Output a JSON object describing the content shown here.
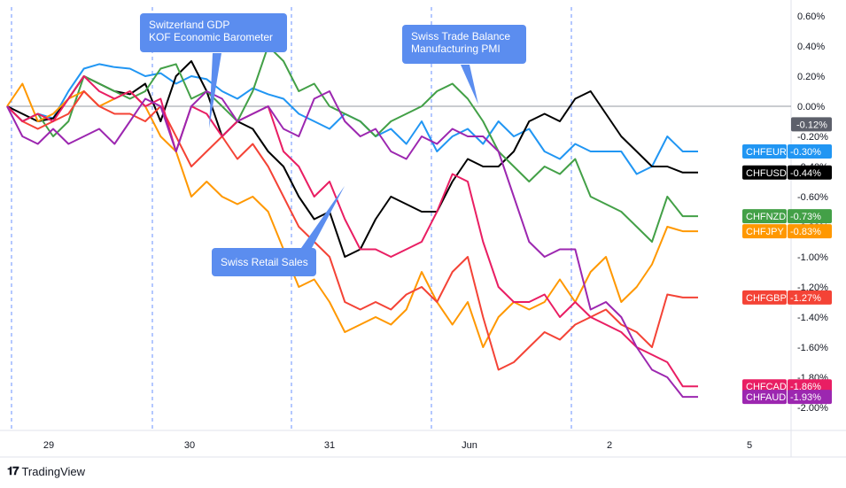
{
  "chart_data": {
    "type": "line",
    "x_labels": [
      "29",
      "30",
      "31",
      "Jun",
      "2",
      "5"
    ],
    "ylim": [
      -2.1,
      0.7
    ],
    "y_ticks": [
      "0.60%",
      "0.40%",
      "0.20%",
      "0.00%",
      "-0.20%",
      "-0.40%",
      "-0.60%",
      "-0.80%",
      "-1.00%",
      "-1.20%",
      "-1.40%",
      "-1.60%",
      "-1.80%",
      "-2.00%"
    ],
    "zero_tag": "-0.12%",
    "series": [
      {
        "name": "CHFEUR",
        "last_label": "-0.30%",
        "color": "#2196f3",
        "values": [
          0.0,
          -0.1,
          -0.05,
          -0.08,
          0.1,
          0.25,
          0.28,
          0.26,
          0.25,
          0.2,
          0.22,
          0.15,
          0.2,
          0.18,
          0.1,
          0.05,
          0.12,
          0.08,
          0.05,
          -0.05,
          -0.1,
          -0.15,
          -0.05,
          -0.1,
          -0.2,
          -0.15,
          -0.25,
          -0.1,
          -0.3,
          -0.2,
          -0.15,
          -0.25,
          -0.1,
          -0.2,
          -0.15,
          -0.3,
          -0.35,
          -0.25,
          -0.3,
          -0.3,
          -0.3,
          -0.45,
          -0.4,
          -0.2,
          -0.3,
          -0.3
        ]
      },
      {
        "name": "CHFUSD",
        "last_label": "-0.44%",
        "color": "#000000",
        "values": [
          0.0,
          -0.05,
          -0.1,
          -0.08,
          0.05,
          0.2,
          0.15,
          0.1,
          0.08,
          0.15,
          -0.1,
          0.2,
          0.3,
          0.1,
          -0.2,
          -0.1,
          -0.15,
          -0.3,
          -0.4,
          -0.6,
          -0.75,
          -0.7,
          -1.0,
          -0.95,
          -0.75,
          -0.6,
          -0.65,
          -0.7,
          -0.7,
          -0.5,
          -0.35,
          -0.4,
          -0.4,
          -0.3,
          -0.1,
          -0.05,
          -0.1,
          0.05,
          0.1,
          -0.05,
          -0.2,
          -0.3,
          -0.4,
          -0.4,
          -0.44,
          -0.44
        ]
      },
      {
        "name": "CHFNZD",
        "last_label": "-0.73%",
        "color": "#43a047",
        "values": [
          0.0,
          -0.1,
          -0.05,
          -0.2,
          -0.1,
          0.2,
          0.15,
          0.1,
          0.05,
          0.1,
          0.25,
          0.28,
          0.05,
          0.1,
          0.0,
          -0.1,
          0.1,
          0.4,
          0.3,
          0.1,
          0.15,
          0.0,
          -0.05,
          -0.1,
          -0.2,
          -0.1,
          -0.05,
          0.0,
          0.1,
          0.15,
          0.05,
          -0.1,
          -0.3,
          -0.4,
          -0.5,
          -0.4,
          -0.45,
          -0.35,
          -0.6,
          -0.65,
          -0.7,
          -0.8,
          -0.9,
          -0.6,
          -0.73,
          -0.73
        ]
      },
      {
        "name": "CHFJPY",
        "last_label": "-0.83%",
        "color": "#ff9800",
        "values": [
          0.0,
          0.15,
          -0.1,
          -0.05,
          0.05,
          0.1,
          0.0,
          0.05,
          0.1,
          0.0,
          -0.2,
          -0.3,
          -0.6,
          -0.5,
          -0.6,
          -0.65,
          -0.6,
          -0.7,
          -0.95,
          -1.2,
          -1.15,
          -1.3,
          -1.5,
          -1.45,
          -1.4,
          -1.45,
          -1.35,
          -1.1,
          -1.3,
          -1.45,
          -1.3,
          -1.6,
          -1.4,
          -1.3,
          -1.35,
          -1.3,
          -1.15,
          -1.3,
          -1.1,
          -1.0,
          -1.3,
          -1.2,
          -1.05,
          -0.8,
          -0.83,
          -0.83
        ]
      },
      {
        "name": "CHFGBP",
        "last_label": "-1.27%",
        "color": "#f44336",
        "values": [
          0.0,
          -0.1,
          -0.15,
          -0.1,
          -0.05,
          0.1,
          0.0,
          -0.05,
          -0.05,
          -0.1,
          0.0,
          -0.2,
          -0.4,
          -0.3,
          -0.2,
          -0.35,
          -0.25,
          -0.4,
          -0.6,
          -0.8,
          -0.9,
          -1.0,
          -1.3,
          -1.35,
          -1.3,
          -1.35,
          -1.25,
          -1.2,
          -1.3,
          -1.1,
          -1.0,
          -1.4,
          -1.75,
          -1.7,
          -1.6,
          -1.5,
          -1.55,
          -1.45,
          -1.4,
          -1.35,
          -1.45,
          -1.5,
          -1.6,
          -1.25,
          -1.27,
          -1.27
        ]
      },
      {
        "name": "CHFCAD",
        "last_label": "-1.86%",
        "color": "#e91e63",
        "values": [
          0.0,
          -0.1,
          -0.05,
          -0.1,
          0.05,
          0.2,
          0.1,
          0.05,
          0.1,
          0.0,
          0.05,
          -0.3,
          0.0,
          -0.05,
          -0.2,
          -0.1,
          -0.05,
          0.0,
          -0.3,
          -0.4,
          -0.6,
          -0.5,
          -0.75,
          -0.95,
          -0.95,
          -1.0,
          -0.95,
          -0.9,
          -0.7,
          -0.45,
          -0.5,
          -0.9,
          -1.2,
          -1.3,
          -1.3,
          -1.25,
          -1.4,
          -1.3,
          -1.4,
          -1.45,
          -1.5,
          -1.6,
          -1.65,
          -1.7,
          -1.86,
          -1.86
        ]
      },
      {
        "name": "CHFAUD",
        "last_label": "-1.93%",
        "color": "#9c27b0",
        "values": [
          0.0,
          -0.2,
          -0.25,
          -0.15,
          -0.25,
          -0.2,
          -0.15,
          -0.25,
          -0.1,
          0.05,
          0.0,
          -0.3,
          0.0,
          0.1,
          0.05,
          -0.1,
          -0.05,
          0.0,
          -0.15,
          -0.2,
          0.05,
          0.1,
          -0.1,
          -0.2,
          -0.15,
          -0.3,
          -0.35,
          -0.2,
          -0.25,
          -0.15,
          -0.2,
          -0.2,
          -0.3,
          -0.6,
          -0.9,
          -1.0,
          -0.95,
          -0.95,
          -1.35,
          -1.3,
          -1.4,
          -1.6,
          -1.75,
          -1.8,
          -1.93,
          -1.93
        ]
      }
    ],
    "annotations": [
      {
        "lines": [
          "Switzerland GDP",
          "KOF Economic Barometer"
        ]
      },
      {
        "lines": [
          "Swiss Trade Balance",
          "Manufacturing PMI"
        ]
      },
      {
        "lines": [
          "Swiss Retail Sales"
        ]
      }
    ]
  },
  "footer": {
    "brand": "TradingView"
  }
}
